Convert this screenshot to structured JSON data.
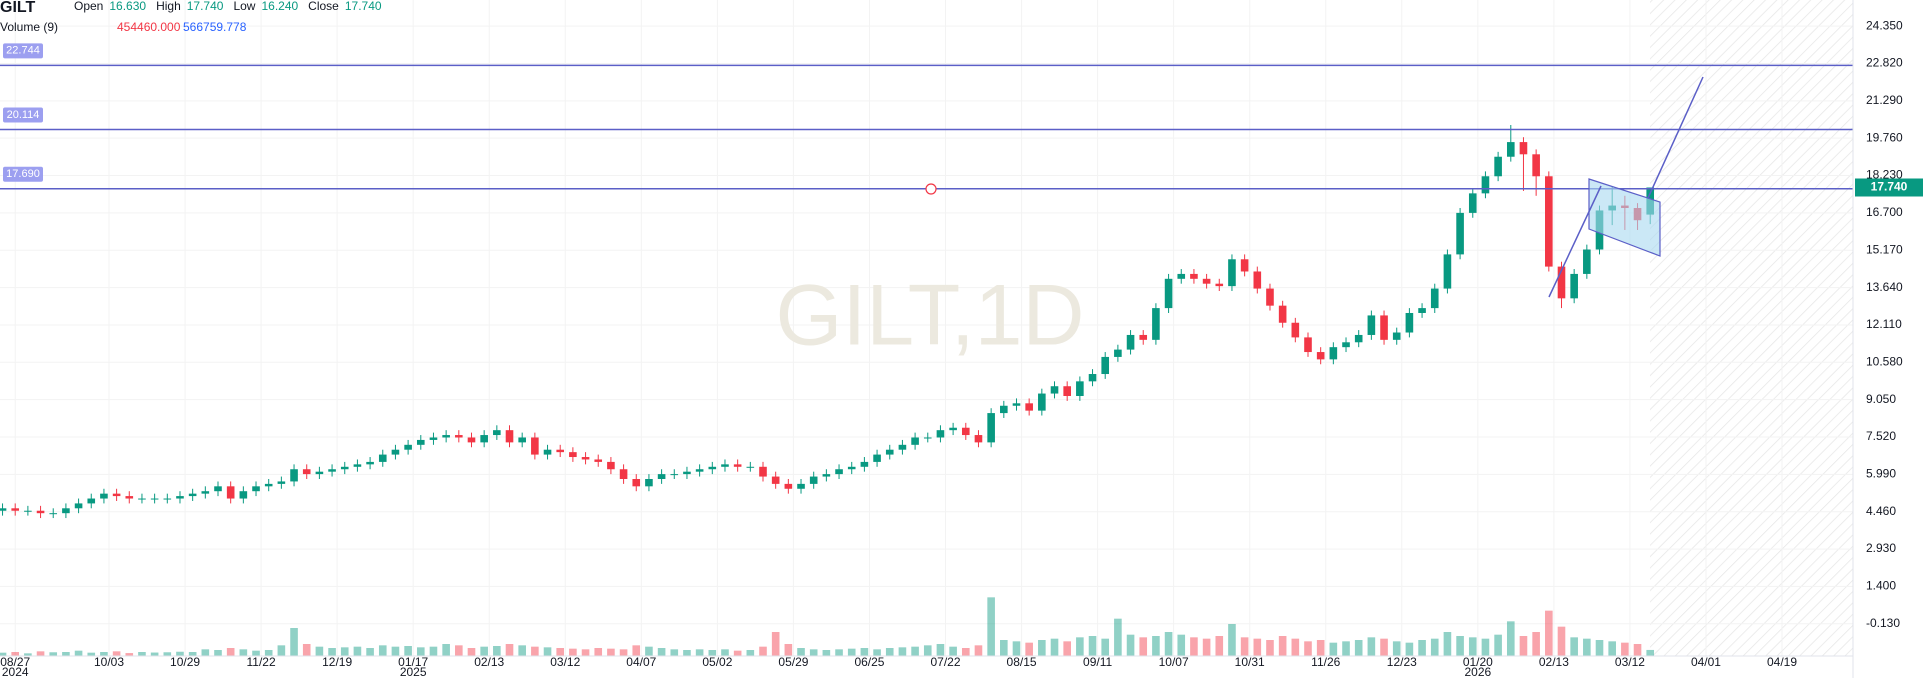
{
  "header": {
    "symbol": "GILT",
    "fields": [
      {
        "label": "Open",
        "value": "16.630"
      },
      {
        "label": "High",
        "value": "17.740"
      },
      {
        "label": "Low",
        "value": "16.240"
      },
      {
        "label": "Close",
        "value": "17.740"
      }
    ],
    "volume_label": "Volume (9)",
    "volume_values": [
      "454460.000",
      "566759.778"
    ]
  },
  "chart_data": {
    "type": "candlestick",
    "watermark": "GILT,1D",
    "open": [
      4.5,
      4.6,
      4.5,
      4.5,
      4.4,
      4.4,
      4.6,
      4.8,
      5.0,
      5.2,
      5.1,
      5.0,
      5.0,
      5.0,
      5.0,
      5.1,
      5.2,
      5.3,
      5.5,
      5.0,
      5.3,
      5.5,
      5.6,
      5.7,
      6.2,
      6.0,
      6.1,
      6.2,
      6.3,
      6.4,
      6.5,
      6.8,
      7.0,
      7.2,
      7.4,
      7.5,
      7.6,
      7.5,
      7.3,
      7.6,
      7.8,
      7.3,
      7.5,
      6.8,
      7.0,
      6.9,
      6.7,
      6.6,
      6.5,
      6.2,
      5.8,
      5.5,
      5.8,
      6.0,
      6.0,
      6.1,
      6.2,
      6.3,
      6.4,
      6.3,
      6.3,
      5.9,
      5.6,
      5.4,
      5.6,
      5.9,
      6.0,
      6.2,
      6.3,
      6.5,
      6.8,
      7.0,
      7.2,
      7.5,
      7.5,
      7.8,
      7.9,
      7.6,
      7.3,
      8.5,
      8.8,
      8.9,
      8.6,
      9.3,
      9.6,
      9.2,
      9.8,
      10.1,
      10.8,
      11.1,
      11.7,
      11.5,
      12.8,
      14.0,
      14.2,
      14.0,
      13.8,
      13.7,
      14.8,
      14.3,
      13.6,
      12.9,
      12.2,
      11.6,
      11.0,
      10.7,
      11.2,
      11.4,
      11.7,
      12.5,
      11.5,
      11.8,
      12.6,
      12.8,
      13.6,
      15.0,
      16.7,
      17.5,
      18.2,
      19.0,
      19.6,
      19.1,
      18.2,
      14.5,
      13.2,
      14.2,
      15.2,
      16.8,
      17.0,
      16.9,
      16.63
    ],
    "high": [
      4.8,
      4.8,
      4.7,
      4.7,
      4.6,
      4.8,
      5.0,
      5.2,
      5.4,
      5.4,
      5.3,
      5.2,
      5.2,
      5.2,
      5.3,
      5.4,
      5.5,
      5.7,
      5.7,
      5.5,
      5.7,
      5.8,
      5.9,
      6.4,
      6.4,
      6.3,
      6.4,
      6.5,
      6.6,
      6.7,
      7.0,
      7.2,
      7.4,
      7.6,
      7.7,
      7.8,
      7.8,
      7.7,
      7.8,
      8.0,
      8.0,
      7.7,
      7.7,
      7.2,
      7.2,
      7.1,
      6.9,
      6.8,
      6.7,
      6.4,
      6.0,
      6.0,
      6.2,
      6.2,
      6.3,
      6.4,
      6.5,
      6.6,
      6.6,
      6.5,
      6.5,
      6.1,
      5.8,
      5.8,
      6.1,
      6.2,
      6.4,
      6.5,
      6.7,
      7.0,
      7.2,
      7.4,
      7.7,
      7.7,
      8.0,
      8.1,
      8.1,
      7.8,
      8.7,
      9.0,
      9.1,
      9.1,
      9.5,
      9.8,
      9.8,
      10.0,
      10.3,
      11.0,
      11.3,
      11.9,
      11.9,
      13.0,
      14.2,
      14.4,
      14.4,
      14.2,
      14.0,
      15.0,
      15.0,
      14.5,
      13.8,
      13.1,
      12.4,
      11.8,
      11.2,
      11.4,
      11.6,
      11.9,
      12.7,
      12.7,
      12.0,
      12.8,
      13.0,
      13.8,
      15.2,
      16.9,
      17.7,
      18.4,
      19.2,
      20.3,
      19.8,
      19.3,
      18.4,
      14.7,
      14.4,
      15.4,
      17.0,
      17.8,
      17.4,
      17.1,
      17.74
    ],
    "low": [
      4.3,
      4.3,
      4.3,
      4.2,
      4.2,
      4.2,
      4.4,
      4.6,
      4.8,
      4.9,
      4.8,
      4.8,
      4.8,
      4.8,
      4.8,
      4.9,
      5.0,
      5.1,
      4.8,
      4.8,
      5.1,
      5.3,
      5.4,
      5.5,
      5.8,
      5.8,
      5.9,
      6.0,
      6.1,
      6.2,
      6.3,
      6.6,
      6.8,
      7.0,
      7.2,
      7.3,
      7.3,
      7.1,
      7.1,
      7.4,
      7.1,
      7.1,
      6.6,
      6.6,
      6.7,
      6.5,
      6.4,
      6.3,
      6.0,
      5.6,
      5.3,
      5.3,
      5.6,
      5.8,
      5.8,
      5.9,
      6.0,
      6.1,
      6.1,
      6.1,
      5.7,
      5.4,
      5.2,
      5.2,
      5.4,
      5.7,
      5.8,
      6.0,
      6.1,
      6.3,
      6.6,
      6.8,
      7.0,
      7.3,
      7.3,
      7.6,
      7.4,
      7.1,
      7.1,
      8.3,
      8.6,
      8.4,
      8.4,
      9.1,
      9.0,
      9.0,
      9.6,
      9.9,
      10.6,
      10.9,
      11.3,
      11.3,
      12.6,
      13.8,
      13.8,
      13.6,
      13.5,
      13.5,
      14.1,
      13.4,
      12.7,
      12.0,
      11.4,
      10.8,
      10.5,
      10.5,
      11.0,
      11.2,
      11.5,
      11.3,
      11.3,
      11.6,
      12.4,
      12.6,
      13.4,
      14.8,
      16.5,
      17.3,
      18.0,
      18.8,
      17.6,
      17.4,
      14.3,
      12.8,
      13.0,
      14.0,
      15.0,
      16.2,
      16.0,
      16.0,
      16.24
    ],
    "close": [
      4.6,
      4.5,
      4.5,
      4.4,
      4.4,
      4.6,
      4.8,
      5.0,
      5.2,
      5.1,
      5.0,
      5.0,
      5.0,
      5.0,
      5.1,
      5.2,
      5.3,
      5.5,
      5.0,
      5.3,
      5.5,
      5.6,
      5.7,
      6.2,
      6.0,
      6.1,
      6.2,
      6.3,
      6.4,
      6.5,
      6.8,
      7.0,
      7.2,
      7.4,
      7.5,
      7.6,
      7.5,
      7.3,
      7.6,
      7.8,
      7.3,
      7.5,
      6.8,
      7.0,
      6.9,
      6.7,
      6.6,
      6.5,
      6.2,
      5.8,
      5.5,
      5.8,
      6.0,
      6.0,
      6.1,
      6.2,
      6.3,
      6.4,
      6.3,
      6.3,
      5.9,
      5.6,
      5.4,
      5.6,
      5.9,
      6.0,
      6.2,
      6.3,
      6.5,
      6.8,
      7.0,
      7.2,
      7.5,
      7.5,
      7.8,
      7.9,
      7.6,
      7.3,
      8.5,
      8.8,
      8.9,
      8.6,
      9.3,
      9.6,
      9.2,
      9.8,
      10.1,
      10.8,
      11.1,
      11.7,
      11.5,
      12.8,
      14.0,
      14.2,
      14.0,
      13.8,
      13.7,
      14.8,
      14.3,
      13.6,
      12.9,
      12.2,
      11.6,
      11.0,
      10.7,
      11.2,
      11.4,
      11.7,
      12.5,
      11.5,
      11.8,
      12.6,
      12.8,
      13.6,
      15.0,
      16.7,
      17.5,
      18.2,
      19.0,
      19.6,
      19.1,
      18.2,
      14.5,
      13.2,
      14.2,
      15.2,
      16.8,
      17.0,
      16.9,
      16.4,
      17.74
    ],
    "volume": [
      250000,
      300000,
      200000,
      350000,
      280000,
      300000,
      400000,
      250000,
      300000,
      350000,
      220000,
      300000,
      260000,
      280000,
      320000,
      300000,
      500000,
      450000,
      600000,
      500000,
      400000,
      450000,
      800000,
      2100000,
      900000,
      700000,
      600000,
      650000,
      700000,
      600000,
      800000,
      700000,
      750000,
      650000,
      700000,
      900000,
      800000,
      600000,
      700000,
      750000,
      900000,
      800000,
      700000,
      650000,
      600000,
      550000,
      500000,
      600000,
      550000,
      500000,
      800000,
      700000,
      600000,
      500000,
      450000,
      500000,
      450000,
      500000,
      400000,
      450000,
      700000,
      1800000,
      900000,
      600000,
      500000,
      450000,
      500000,
      550000,
      600000,
      500000,
      600000,
      650000,
      700000,
      800000,
      900000,
      700000,
      600000,
      800000,
      4400000,
      1200000,
      1100000,
      1000000,
      1200000,
      1300000,
      1100000,
      1400000,
      1500000,
      1300000,
      2800000,
      1600000,
      1400000,
      1500000,
      1800000,
      1600000,
      1400000,
      1300000,
      1500000,
      2400000,
      1400000,
      1300000,
      1200000,
      1500000,
      1300000,
      1100000,
      1200000,
      1000000,
      1100000,
      1200000,
      1400000,
      1300000,
      1100000,
      1000000,
      1200000,
      1300000,
      1800000,
      1500000,
      1400000,
      1300000,
      1600000,
      2600000,
      1500000,
      1800000,
      3400000,
      2200000,
      1400000,
      1300000,
      1200000,
      1100000,
      1000000,
      900000,
      454460
    ],
    "up_color": "#089981",
    "down_color": "#f23645",
    "xlim": [
      -0.2,
      146
    ],
    "xticks": [
      {
        "value": 1,
        "label": "08/27",
        "year": "2024"
      },
      {
        "value": 8.4,
        "label": "10/03"
      },
      {
        "value": 14.4,
        "label": "10/29"
      },
      {
        "value": 20.4,
        "label": "11/22"
      },
      {
        "value": 26.4,
        "label": "12/19"
      },
      {
        "value": 32.4,
        "label": "01/17",
        "year": "2025"
      },
      {
        "value": 38.4,
        "label": "02/13"
      },
      {
        "value": 44.4,
        "label": "03/12"
      },
      {
        "value": 50.4,
        "label": "04/07"
      },
      {
        "value": 56.4,
        "label": "05/02"
      },
      {
        "value": 62.4,
        "label": "05/29"
      },
      {
        "value": 68.4,
        "label": "06/25"
      },
      {
        "value": 74.4,
        "label": "07/22"
      },
      {
        "value": 80.4,
        "label": "08/15"
      },
      {
        "value": 86.4,
        "label": "09/11"
      },
      {
        "value": 92.4,
        "label": "10/07"
      },
      {
        "value": 98.4,
        "label": "10/31"
      },
      {
        "value": 104.4,
        "label": "11/26"
      },
      {
        "value": 110.4,
        "label": "12/23"
      },
      {
        "value": 116.4,
        "label": "01/20",
        "year": "2026"
      },
      {
        "value": 122.4,
        "label": "02/13"
      },
      {
        "value": 128.4,
        "label": "03/12"
      },
      {
        "value": 134.4,
        "label": "04/01"
      },
      {
        "value": 140.4,
        "label": "04/19"
      }
    ],
    "ylim": [
      -1.45,
      25.42
    ],
    "yticks": [
      {
        "value": 24.35,
        "label": "24.350"
      },
      {
        "value": 22.82,
        "label": "22.820"
      },
      {
        "value": 21.29,
        "label": "21.290"
      },
      {
        "value": 19.76,
        "label": "19.760"
      },
      {
        "value": 18.23,
        "label": "18.230"
      },
      {
        "value": 16.7,
        "label": "16.700"
      },
      {
        "value": 15.17,
        "label": "15.170"
      },
      {
        "value": 13.64,
        "label": "13.640"
      },
      {
        "value": 12.11,
        "label": "12.110"
      },
      {
        "value": 10.58,
        "label": "10.580"
      },
      {
        "value": 9.05,
        "label": "9.050"
      },
      {
        "value": 7.52,
        "label": "7.520"
      },
      {
        "value": 5.99,
        "label": "5.990"
      },
      {
        "value": 4.46,
        "label": "4.460"
      },
      {
        "value": 2.93,
        "label": "2.930"
      },
      {
        "value": 1.4,
        "label": "1.400"
      },
      {
        "value": -0.13,
        "label": "-0.130"
      }
    ],
    "volume_lim": [
      0,
      9000000
    ],
    "levels": [
      {
        "value": 22.744,
        "label": "22.744"
      },
      {
        "value": 20.114,
        "label": "20.114"
      },
      {
        "value": 17.69,
        "label": "17.690"
      }
    ],
    "level_color": "#5b5fc7",
    "last_price": {
      "value": 17.74,
      "label": "17.740"
    },
    "grid": true
  }
}
